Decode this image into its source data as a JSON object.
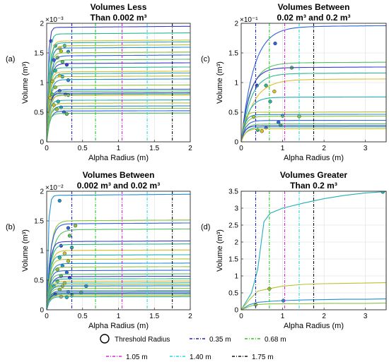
{
  "colors": {
    "thr_035": "#1f1fd6",
    "thr_068": "#22cc22",
    "thr_105": "#dd22dd",
    "thr_140": "#22dddd",
    "thr_175": "#111111",
    "palette": [
      "#3a3ad0",
      "#2e62e0",
      "#1f8fd8",
      "#1fb0b8",
      "#28b890",
      "#55c060",
      "#8cc43c",
      "#b8c22c",
      "#dcbd2a"
    ]
  },
  "legend": {
    "threshold_label": "Threshold Radius",
    "lines": [
      {
        "label": "0.35 m",
        "color_key": "thr_035"
      },
      {
        "label": "0.68 m",
        "color_key": "thr_068"
      },
      {
        "label": "1.05 m",
        "color_key": "thr_105"
      },
      {
        "label": "1.40 m",
        "color_key": "thr_140"
      },
      {
        "label": "1.75 m",
        "color_key": "thr_175"
      }
    ]
  },
  "chart_data": [
    {
      "panel": "(a)",
      "type": "line",
      "title_lines": [
        "Volumes Less",
        "Than 0.002 m³"
      ],
      "xlabel": "Alpha Radius (m)",
      "ylabel": "Volume (m³)",
      "exponent_label": "×10⁻³",
      "xlim": [
        0,
        2
      ],
      "ylim": [
        0,
        2
      ],
      "xticks": [
        0,
        0.5,
        1,
        1.5,
        2
      ],
      "xtick_labels": [
        "0",
        "0.5",
        "1",
        "1.5",
        "2"
      ],
      "yticks": [
        0,
        0.5,
        1,
        1.5,
        2
      ],
      "ytick_labels": [
        "0",
        "0.5",
        "1",
        "1.5",
        "2"
      ],
      "threshold_lines": [
        0.35,
        0.68,
        1.05,
        1.4,
        1.75
      ],
      "grid": true,
      "series": [
        {
          "plateau": 1.93,
          "rise": 0.06,
          "marker": [
            0.06,
            1.7
          ]
        },
        {
          "plateau": 1.82,
          "rise": 0.08,
          "marker": [
            0.12,
            1.62
          ]
        },
        {
          "plateau": 1.7,
          "rise": 0.1,
          "marker": [
            0.18,
            1.58
          ]
        },
        {
          "plateau": 1.67,
          "rise": 0.1,
          "marker": [
            0.25,
            1.62
          ]
        },
        {
          "plateau": 1.62,
          "rise": 0.12,
          "marker": [
            0.2,
            1.53
          ]
        },
        {
          "plateau": 1.58,
          "rise": 0.1,
          "marker": [
            0.3,
            1.52
          ]
        },
        {
          "plateau": 1.5,
          "rise": 0.1,
          "marker": [
            0.15,
            1.42
          ]
        },
        {
          "plateau": 1.45,
          "rise": 0.12,
          "marker": [
            0.1,
            1.38
          ]
        },
        {
          "plateau": 1.38,
          "rise": 0.12,
          "marker": [
            0.22,
            1.35
          ]
        },
        {
          "plateau": 1.32,
          "rise": 0.12,
          "marker": [
            0.28,
            1.3
          ]
        },
        {
          "plateau": 1.25,
          "rise": 0.1,
          "marker": [
            0.12,
            1.2
          ]
        },
        {
          "plateau": 1.18,
          "rise": 0.1,
          "marker": [
            0.18,
            1.12
          ]
        },
        {
          "plateau": 1.15,
          "rise": 0.12,
          "marker": [
            0.22,
            1.1
          ]
        },
        {
          "plateau": 1.1,
          "rise": 0.1,
          "marker": [
            0.08,
            1.02
          ]
        },
        {
          "plateau": 1.05,
          "rise": 0.12,
          "marker": [
            0.3,
            1.04
          ]
        },
        {
          "plateau": 0.95,
          "rise": 0.1,
          "marker": [
            0.12,
            0.92
          ]
        },
        {
          "plateau": 0.88,
          "rise": 0.12,
          "marker": [
            0.18,
            0.86
          ]
        },
        {
          "plateau": 0.85,
          "rise": 0.12,
          "marker": [
            0.08,
            0.8
          ]
        },
        {
          "plateau": 0.82,
          "rise": 0.1,
          "marker": [
            0.26,
            0.8
          ]
        },
        {
          "plateau": 0.8,
          "rise": 0.12,
          "marker": [
            0.3,
            0.79
          ]
        },
        {
          "plateau": 0.78,
          "rise": 0.1,
          "marker": [
            0.05,
            0.74
          ]
        },
        {
          "plateau": 0.7,
          "rise": 0.1,
          "marker": [
            0.16,
            0.68
          ]
        },
        {
          "plateau": 0.65,
          "rise": 0.12,
          "marker": [
            0.1,
            0.62
          ]
        },
        {
          "plateau": 0.6,
          "rise": 0.12,
          "marker": [
            0.2,
            0.58
          ]
        },
        {
          "plateau": 0.56,
          "rise": 0.1,
          "marker": [
            0.14,
            0.55
          ]
        },
        {
          "plateau": 0.52,
          "rise": 0.12,
          "marker": [
            0.24,
            0.5
          ]
        },
        {
          "plateau": 0.48,
          "rise": 0.1,
          "marker": [
            0.28,
            0.47
          ]
        }
      ]
    },
    {
      "panel": "(c)",
      "type": "line",
      "title_lines": [
        "Volumes Between",
        "0.02 m³ and 0.2 m³"
      ],
      "xlabel": "Alpha Radius (m)",
      "ylabel": "Volume (m³)",
      "exponent_label": "×10⁻¹",
      "xlim": [
        0,
        3.5
      ],
      "ylim": [
        0,
        2
      ],
      "xticks": [
        0,
        1,
        2,
        3
      ],
      "xtick_labels": [
        "0",
        "1",
        "2",
        "3"
      ],
      "yticks": [
        0,
        0.5,
        1,
        1.5,
        2
      ],
      "ytick_labels": [
        "0",
        "0.5",
        "1",
        "1.5",
        "2"
      ],
      "threshold_lines": [
        0.35,
        0.68,
        1.05,
        1.4,
        1.75
      ],
      "grid": true,
      "series": [
        {
          "plateau": 1.94,
          "rise": 0.9,
          "marker": [
            0.82,
            1.66
          ]
        },
        {
          "plateau": 1.33,
          "rise": 0.7,
          "marker": [
            1.22,
            1.25
          ]
        },
        {
          "plateau": 1.25,
          "rise": 0.6,
          "marker": [
            0.38,
            0.95
          ]
        },
        {
          "plateau": 1.15,
          "rise": 0.7,
          "marker": [
            0.6,
            0.95
          ]
        },
        {
          "plateau": 1.05,
          "rise": 0.9,
          "marker": [
            0.8,
            0.85
          ]
        },
        {
          "plateau": 0.75,
          "rise": 0.5,
          "marker": [
            0.7,
            0.68
          ]
        },
        {
          "plateau": 0.5,
          "rise": 0.2,
          "marker": [
            0.3,
            0.42
          ]
        },
        {
          "plateau": 0.46,
          "rise": 0.25,
          "marker": [
            1.0,
            0.44
          ]
        },
        {
          "plateau": 0.43,
          "rise": 0.3,
          "marker": [
            1.4,
            0.43
          ]
        },
        {
          "plateau": 0.36,
          "rise": 0.3,
          "marker": [
            0.9,
            0.33
          ]
        },
        {
          "plateau": 0.3,
          "rise": 0.3,
          "marker": [
            0.95,
            0.28
          ]
        },
        {
          "plateau": 0.27,
          "rise": 0.25,
          "marker": [
            0.6,
            0.24
          ]
        },
        {
          "plateau": 0.25,
          "rise": 0.35,
          "marker": [
            0.4,
            0.2
          ]
        },
        {
          "plateau": 0.22,
          "rise": 0.3,
          "marker": [
            0.5,
            0.18
          ]
        }
      ]
    },
    {
      "panel": "(b)",
      "type": "line",
      "title_lines": [
        "Volumes Between",
        "0.002 m³ and 0.02 m³"
      ],
      "xlabel": "Alpha Radius (m)",
      "ylabel": "Volume (m³)",
      "exponent_label": "×10⁻²",
      "xlim": [
        0,
        2
      ],
      "ylim": [
        0,
        2
      ],
      "xticks": [
        0,
        0.5,
        1,
        1.5,
        2
      ],
      "xtick_labels": [
        "0",
        "0.5",
        "1",
        "1.5",
        "2"
      ],
      "yticks": [
        0,
        0.5,
        1,
        1.5,
        2
      ],
      "ytick_labels": [
        "0",
        "0.5",
        "1",
        "1.5",
        "2"
      ],
      "threshold_lines": [
        0.35,
        0.68,
        1.05,
        1.4,
        1.75
      ],
      "grid": true,
      "series": [
        {
          "plateau": 1.93,
          "rise": 0.06,
          "marker": [
            0.18,
            1.84
          ]
        },
        {
          "plateau": 1.5,
          "rise": 0.15,
          "marker": [
            0.4,
            1.42
          ]
        },
        {
          "plateau": 1.45,
          "rise": 0.15,
          "marker": [
            0.3,
            1.38
          ]
        },
        {
          "plateau": 1.35,
          "rise": 0.2,
          "marker": [
            0.32,
            1.25
          ]
        },
        {
          "plateau": 1.15,
          "rise": 0.12,
          "marker": [
            0.2,
            1.08
          ]
        },
        {
          "plateau": 1.1,
          "rise": 0.14,
          "marker": [
            0.35,
            1.05
          ]
        },
        {
          "plateau": 1.0,
          "rise": 0.14,
          "marker": [
            0.25,
            0.95
          ]
        },
        {
          "plateau": 0.92,
          "rise": 0.12,
          "marker": [
            0.18,
            0.88
          ]
        },
        {
          "plateau": 0.85,
          "rise": 0.12,
          "marker": [
            0.3,
            0.82
          ]
        },
        {
          "plateau": 0.78,
          "rise": 0.14,
          "marker": [
            0.22,
            0.74
          ]
        },
        {
          "plateau": 0.72,
          "rise": 0.12,
          "marker": [
            0.15,
            0.68
          ]
        },
        {
          "plateau": 0.66,
          "rise": 0.12,
          "marker": [
            0.28,
            0.63
          ]
        },
        {
          "plateau": 0.6,
          "rise": 0.12,
          "marker": [
            0.2,
            0.57
          ]
        },
        {
          "plateau": 0.56,
          "rise": 0.14,
          "marker": [
            0.32,
            0.54
          ]
        },
        {
          "plateau": 0.52,
          "rise": 0.12,
          "marker": [
            0.15,
            0.48
          ]
        },
        {
          "plateau": 0.48,
          "rise": 0.12,
          "marker": [
            0.25,
            0.45
          ]
        },
        {
          "plateau": 0.45,
          "rise": 0.12,
          "marker": [
            0.1,
            0.4
          ]
        },
        {
          "plateau": 0.42,
          "rise": 0.12,
          "marker": [
            0.22,
            0.4
          ]
        },
        {
          "plateau": 0.4,
          "rise": 0.12,
          "marker": [
            0.55,
            0.4
          ]
        },
        {
          "plateau": 0.36,
          "rise": 0.12,
          "marker": [
            0.18,
            0.34
          ]
        },
        {
          "plateau": 0.32,
          "rise": 0.12,
          "marker": [
            0.3,
            0.3
          ]
        },
        {
          "plateau": 0.3,
          "rise": 0.12,
          "marker": [
            0.48,
            0.29
          ]
        },
        {
          "plateau": 0.28,
          "rise": 0.12,
          "marker": [
            0.12,
            0.26
          ]
        },
        {
          "plateau": 0.26,
          "rise": 0.12,
          "marker": [
            0.35,
            0.25
          ]
        },
        {
          "plateau": 0.24,
          "rise": 0.12,
          "marker": [
            0.2,
            0.22
          ]
        },
        {
          "plateau": 0.22,
          "rise": 0.12,
          "marker": [
            0.28,
            0.21
          ]
        }
      ]
    },
    {
      "panel": "(d)",
      "type": "line",
      "title_lines": [
        "Volumes Greater",
        "Than 0.2 m³"
      ],
      "xlabel": "Alpha Radius (m)",
      "ylabel": "Volume (m³)",
      "exponent_label": "",
      "xlim": [
        0,
        3.5
      ],
      "ylim": [
        0,
        3.5
      ],
      "xticks": [
        0,
        1,
        2,
        3
      ],
      "xtick_labels": [
        "0",
        "1",
        "2",
        "3"
      ],
      "yticks": [
        0,
        0.5,
        1,
        1.5,
        2,
        2.5,
        3,
        3.5
      ],
      "ytick_labels": [
        "0",
        "0.5",
        "1",
        "1.5",
        "2",
        "2.5",
        "3",
        "3.5"
      ],
      "threshold_lines": [
        0.35,
        0.68,
        1.05,
        1.4,
        1.75
      ],
      "grid": true,
      "series": [
        {
          "points": [
            [
              0,
              0
            ],
            [
              0.25,
              0.5
            ],
            [
              0.4,
              1.2
            ],
            [
              0.55,
              2.6
            ],
            [
              0.7,
              2.85
            ],
            [
              1.0,
              3.0
            ],
            [
              1.5,
              3.15
            ],
            [
              2.0,
              3.28
            ],
            [
              2.5,
              3.38
            ],
            [
              3.0,
              3.45
            ],
            [
              3.5,
              3.49
            ]
          ],
          "marker": [
            3.42,
            3.48
          ]
        },
        {
          "points": [
            [
              0,
              0
            ],
            [
              0.2,
              0.3
            ],
            [
              0.4,
              0.55
            ],
            [
              0.7,
              0.63
            ],
            [
              1.0,
              0.7
            ],
            [
              1.5,
              0.75
            ],
            [
              2.0,
              0.77
            ],
            [
              2.5,
              0.78
            ],
            [
              3.0,
              0.79
            ],
            [
              3.5,
              0.8
            ]
          ],
          "marker": [
            0.68,
            0.62
          ]
        },
        {
          "points": [
            [
              0,
              0
            ],
            [
              0.2,
              0.15
            ],
            [
              0.4,
              0.22
            ],
            [
              0.7,
              0.25
            ],
            [
              1.0,
              0.27
            ],
            [
              1.5,
              0.29
            ],
            [
              2.0,
              0.3
            ],
            [
              2.5,
              0.31
            ],
            [
              3.0,
              0.31
            ],
            [
              3.5,
              0.32
            ]
          ],
          "marker": [
            1.02,
            0.27
          ]
        },
        {
          "points": [
            [
              0,
              0
            ],
            [
              0.2,
              0.1
            ],
            [
              0.35,
              0.15
            ],
            [
              0.6,
              0.17
            ],
            [
              1.0,
              0.18
            ],
            [
              1.5,
              0.18
            ],
            [
              2.0,
              0.19
            ],
            [
              2.5,
              0.19
            ],
            [
              3.0,
              0.19
            ],
            [
              3.5,
              0.2
            ]
          ],
          "marker": [
            0.35,
            0.15
          ]
        }
      ]
    }
  ]
}
